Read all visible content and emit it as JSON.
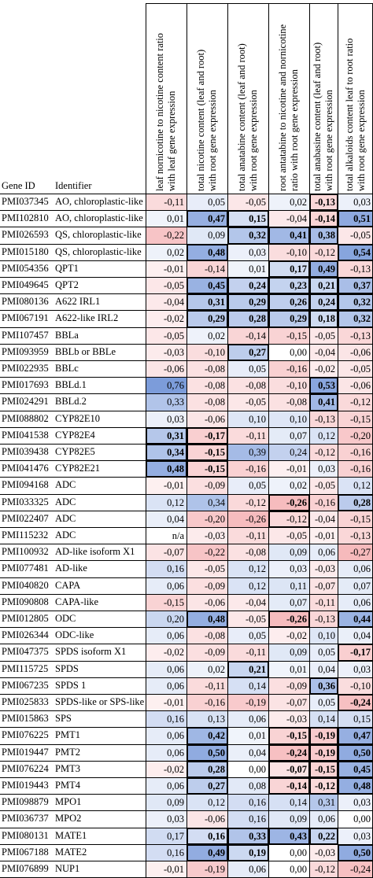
{
  "header": {
    "gene_id": "Gene ID",
    "identifier": "Identifier",
    "columns": [
      {
        "line1": "leaf nornicotine to nicotine content ratio",
        "line2": "with leaf gene expression"
      },
      {
        "line1": "total nicotine content (leaf and root)",
        "line2": "with root gene expression"
      },
      {
        "line1": "total anatabine content (leaf and root)",
        "line2": "with root gene expression"
      },
      {
        "line1": "root antatabine to nicotine and nornicotine",
        "line2": "ratio with root gene expression"
      },
      {
        "line1": "total anabasine content (leaf and root)",
        "line2": "with root gene expression"
      },
      {
        "line1": "total alkaloids content leaf to root ratio",
        "line2": "with root gene expression"
      }
    ]
  },
  "colors": {
    "pos": "#5b83d1",
    "neg": "#e8545a"
  },
  "rows": [
    {
      "id": "PMI037345",
      "name": "AO, chloroplastic-like",
      "v": [
        "-0,11",
        "0,05",
        "-0,05",
        "0,02",
        "-0,13",
        "0,03"
      ],
      "b": [
        0,
        0,
        0,
        0,
        1,
        0
      ],
      "x": [
        0,
        0,
        0,
        0,
        1,
        0
      ]
    },
    {
      "id": "PMI102810",
      "name": "AO, chloroplastic-like",
      "v": [
        "0,01",
        "0,47",
        "0,15",
        "-0,04",
        "-0,14",
        "0,51"
      ],
      "b": [
        0,
        1,
        1,
        0,
        1,
        1
      ],
      "x": [
        0,
        1,
        1,
        0,
        1,
        1
      ]
    },
    {
      "id": "PMI026593",
      "name": "QS, chloroplastic-like",
      "v": [
        "-0,22",
        "0,09",
        "0,32",
        "0,41",
        "0,38",
        "-0,05"
      ],
      "b": [
        0,
        0,
        1,
        1,
        1,
        0
      ],
      "x": [
        0,
        0,
        1,
        1,
        1,
        0
      ]
    },
    {
      "id": "PMI015180",
      "name": "QS, chloroplastic-like",
      "v": [
        "0,02",
        "0,48",
        "0,03",
        "-0,10",
        "-0,12",
        "0,54"
      ],
      "b": [
        0,
        1,
        0,
        0,
        0,
        1
      ],
      "x": [
        0,
        1,
        0,
        0,
        0,
        1
      ]
    },
    {
      "id": "PMI054356",
      "name": "QPT1",
      "v": [
        "-0,01",
        "-0,14",
        "0,01",
        "0,17",
        "0,49",
        "-0,13"
      ],
      "b": [
        0,
        0,
        0,
        1,
        1,
        0
      ],
      "x": [
        0,
        0,
        0,
        1,
        1,
        0
      ]
    },
    {
      "id": "PMI049645",
      "name": "QPT2",
      "v": [
        "-0,05",
        "0,45",
        "0,24",
        "0,23",
        "0,21",
        "0,37"
      ],
      "b": [
        0,
        1,
        1,
        1,
        1,
        1
      ],
      "x": [
        0,
        1,
        1,
        1,
        1,
        1
      ]
    },
    {
      "id": "PMI080136",
      "name": "A622 IRL1",
      "v": [
        "-0,04",
        "0,31",
        "0,29",
        "0,26",
        "0,24",
        "0,32"
      ],
      "b": [
        0,
        1,
        1,
        1,
        1,
        1
      ],
      "x": [
        0,
        1,
        1,
        1,
        1,
        1
      ]
    },
    {
      "id": "PMI067191",
      "name": "A622-like IRL2",
      "v": [
        "-0,02",
        "0,29",
        "0,28",
        "0,29",
        "0,18",
        "0,32"
      ],
      "b": [
        0,
        1,
        1,
        1,
        1,
        1
      ],
      "x": [
        0,
        1,
        1,
        1,
        1,
        1
      ]
    },
    {
      "id": "PMI107457",
      "name": "BBLa",
      "v": [
        "-0,05",
        "0,02",
        "-0,14",
        "-0,15",
        "-0,05",
        "-0,13"
      ],
      "b": [
        0,
        0,
        0,
        0,
        0,
        0
      ],
      "x": [
        0,
        0,
        0,
        0,
        0,
        0
      ]
    },
    {
      "id": "PMI093959",
      "name": "BBLb or BBLe",
      "v": [
        "-0,03",
        "-0,10",
        "0,27",
        "0,00",
        "-0,04",
        "-0,06"
      ],
      "b": [
        0,
        0,
        1,
        0,
        0,
        0
      ],
      "x": [
        0,
        0,
        1,
        0,
        0,
        0
      ]
    },
    {
      "id": "PMI022935",
      "name": "BBLc",
      "v": [
        "-0,06",
        "-0,08",
        "0,05",
        "-0,16",
        "-0,02",
        "-0,05"
      ],
      "b": [
        0,
        0,
        0,
        0,
        0,
        0
      ],
      "x": [
        0,
        0,
        0,
        0,
        0,
        0
      ]
    },
    {
      "id": "PMI017693",
      "name": "BBLd.1",
      "v": [
        "0,76",
        "-0,08",
        "-0,08",
        "-0,10",
        "0,53",
        "-0,06"
      ],
      "b": [
        0,
        0,
        0,
        0,
        1,
        0
      ],
      "x": [
        0,
        0,
        0,
        0,
        1,
        0
      ]
    },
    {
      "id": "PMI024291",
      "name": "BBLd.2",
      "v": [
        "0,33",
        "-0,08",
        "-0,05",
        "-0,08",
        "0,41",
        "-0,12"
      ],
      "b": [
        0,
        0,
        0,
        0,
        1,
        0
      ],
      "x": [
        0,
        0,
        0,
        0,
        1,
        0
      ]
    },
    {
      "id": "PMI088802",
      "name": "CYP82E10",
      "v": [
        "0,03",
        "-0,06",
        "0,10",
        "0,10",
        "-0,13",
        "-0,15"
      ],
      "b": [
        0,
        0,
        0,
        0,
        0,
        0
      ],
      "x": [
        0,
        0,
        0,
        0,
        0,
        0
      ]
    },
    {
      "id": "PMI041538",
      "name": "CYP82E4",
      "v": [
        "0,31",
        "-0,17",
        "-0,11",
        "0,07",
        "0,12",
        "-0,20"
      ],
      "b": [
        1,
        1,
        0,
        0,
        0,
        0
      ],
      "x": [
        1,
        1,
        0,
        0,
        0,
        0
      ]
    },
    {
      "id": "PMI039438",
      "name": "CYP82E5",
      "v": [
        "0,34",
        "-0,15",
        "0,39",
        "0,24",
        "-0,12",
        "-0,16"
      ],
      "b": [
        1,
        1,
        0,
        0,
        0,
        0
      ],
      "x": [
        1,
        1,
        0,
        0,
        0,
        0
      ]
    },
    {
      "id": "PMI041476",
      "name": "CYP82E21",
      "v": [
        "0,48",
        "-0,15",
        "-0,16",
        "-0,01",
        "0,03",
        "-0,16"
      ],
      "b": [
        1,
        1,
        0,
        0,
        0,
        0
      ],
      "x": [
        1,
        1,
        0,
        0,
        0,
        0
      ]
    },
    {
      "id": "PMI094168",
      "name": "ADC",
      "v": [
        "-0,01",
        "-0,09",
        "0,05",
        "0,02",
        "-0,05",
        "0,12"
      ],
      "b": [
        0,
        0,
        0,
        0,
        0,
        0
      ],
      "x": [
        0,
        0,
        0,
        0,
        0,
        0
      ]
    },
    {
      "id": "PMI033325",
      "name": "ADC",
      "v": [
        "0,12",
        "0,34",
        "-0,12",
        "-0,26",
        "-0,16",
        "0,28"
      ],
      "b": [
        0,
        0,
        0,
        1,
        0,
        1
      ],
      "x": [
        0,
        0,
        0,
        1,
        0,
        1
      ]
    },
    {
      "id": "PMI022407",
      "name": "ADC",
      "v": [
        "0,04",
        "-0,20",
        "-0,26",
        "-0,12",
        "-0,04",
        "-0,15"
      ],
      "b": [
        0,
        0,
        0,
        0,
        0,
        0
      ],
      "x": [
        0,
        0,
        0,
        1,
        0,
        0
      ]
    },
    {
      "id": "PMI115232",
      "name": "ADC",
      "v": [
        "n/a",
        "-0,03",
        "-0,11",
        "-0,05",
        "-0,01",
        "-0,13"
      ],
      "b": [
        0,
        0,
        0,
        0,
        0,
        0
      ],
      "x": [
        0,
        0,
        0,
        0,
        0,
        0
      ]
    },
    {
      "id": "PMI100932",
      "name": "AD-like isoform X1",
      "v": [
        "-0,07",
        "-0,22",
        "-0,08",
        "0,09",
        "0,06",
        "-0,27"
      ],
      "b": [
        0,
        0,
        0,
        0,
        0,
        0
      ],
      "x": [
        0,
        0,
        0,
        0,
        0,
        0
      ]
    },
    {
      "id": "PMI077481",
      "name": "AD-like",
      "v": [
        "0,16",
        "-0,05",
        "0,12",
        "0,03",
        "-0,03",
        "0,06"
      ],
      "b": [
        0,
        0,
        0,
        0,
        0,
        0
      ],
      "x": [
        0,
        0,
        0,
        0,
        0,
        0
      ]
    },
    {
      "id": "PMI040820",
      "name": "CAPA",
      "v": [
        "0,06",
        "-0,09",
        "0,12",
        "0,11",
        "-0,07",
        "0,07"
      ],
      "b": [
        0,
        0,
        0,
        0,
        0,
        0
      ],
      "x": [
        0,
        0,
        0,
        0,
        0,
        0
      ]
    },
    {
      "id": "PMI090808",
      "name": "CAPA-like",
      "v": [
        "-0,15",
        "-0,06",
        "-0,04",
        "0,07",
        "-0,11",
        "0,06"
      ],
      "b": [
        0,
        0,
        0,
        0,
        0,
        0
      ],
      "x": [
        0,
        0,
        0,
        0,
        0,
        0
      ]
    },
    {
      "id": "PMI012805",
      "name": "ODC",
      "v": [
        "0,20",
        "0,48",
        "-0,05",
        "-0,26",
        "-0,13",
        "0,44"
      ],
      "b": [
        0,
        1,
        0,
        1,
        0,
        1
      ],
      "x": [
        0,
        1,
        0,
        1,
        0,
        1
      ]
    },
    {
      "id": "PMI026344",
      "name": "ODC-like",
      "v": [
        "0,06",
        "-0,08",
        "0,05",
        "-0,02",
        "0,10",
        "0,04"
      ],
      "b": [
        0,
        0,
        0,
        0,
        0,
        0
      ],
      "x": [
        0,
        0,
        0,
        0,
        0,
        0
      ]
    },
    {
      "id": "PMI047375",
      "name": "SPDS isoform X1",
      "v": [
        "-0,02",
        "-0,09",
        "-0,11",
        "0,09",
        "0,05",
        "-0,17"
      ],
      "b": [
        0,
        0,
        0,
        0,
        0,
        1
      ],
      "x": [
        0,
        0,
        0,
        0,
        0,
        1
      ]
    },
    {
      "id": "PMI115725",
      "name": "SPDS",
      "v": [
        "0,06",
        "0,02",
        "0,21",
        "0,01",
        "0,04",
        "0,03"
      ],
      "b": [
        0,
        0,
        1,
        0,
        0,
        0
      ],
      "x": [
        0,
        0,
        1,
        0,
        0,
        0
      ]
    },
    {
      "id": "PMI067235",
      "name": "SPDS 1",
      "v": [
        "0,06",
        "-0,11",
        "0,14",
        "-0,09",
        "0,36",
        "-0,10"
      ],
      "b": [
        0,
        0,
        0,
        0,
        1,
        0
      ],
      "x": [
        0,
        0,
        0,
        0,
        1,
        0
      ]
    },
    {
      "id": "PMI025833",
      "name": "SPDS-like or SPS-like",
      "v": [
        "-0,01",
        "-0,16",
        "-0,19",
        "-0,07",
        "0,05",
        "-0,24"
      ],
      "b": [
        0,
        0,
        0,
        0,
        0,
        1
      ],
      "x": [
        0,
        0,
        0,
        0,
        0,
        1
      ]
    },
    {
      "id": "PMI015863",
      "name": "SPS",
      "v": [
        "0,16",
        "0,13",
        "0,06",
        "-0,03",
        "0,14",
        "0,15"
      ],
      "b": [
        0,
        0,
        0,
        0,
        0,
        0
      ],
      "x": [
        0,
        0,
        0,
        0,
        0,
        0
      ]
    },
    {
      "id": "PMI076225",
      "name": "PMT1",
      "v": [
        "0,06",
        "0,42",
        "0,01",
        "-0,15",
        "-0,19",
        "0,47"
      ],
      "b": [
        0,
        1,
        0,
        1,
        1,
        1
      ],
      "x": [
        0,
        1,
        0,
        1,
        1,
        1
      ]
    },
    {
      "id": "PMI019447",
      "name": "PMT2",
      "v": [
        "0,06",
        "0,50",
        "0,04",
        "-0,24",
        "-0,19",
        "0,50"
      ],
      "b": [
        0,
        1,
        0,
        1,
        1,
        1
      ],
      "x": [
        0,
        1,
        0,
        1,
        1,
        1
      ]
    },
    {
      "id": "PMI076224",
      "name": "PMT3",
      "v": [
        "-0,02",
        "0,28",
        "0,00",
        "-0,07",
        "-0,15",
        "0,45"
      ],
      "b": [
        0,
        1,
        0,
        1,
        1,
        1
      ],
      "x": [
        0,
        1,
        0,
        1,
        1,
        1
      ]
    },
    {
      "id": "PMI019443",
      "name": "PMT4",
      "v": [
        "0,06",
        "0,27",
        "0,08",
        "-0,14",
        "-0,12",
        "0,48"
      ],
      "b": [
        0,
        1,
        0,
        1,
        1,
        1
      ],
      "x": [
        0,
        1,
        0,
        1,
        1,
        1
      ]
    },
    {
      "id": "PMI098879",
      "name": "MPO1",
      "v": [
        "0,09",
        "0,12",
        "0,16",
        "0,14",
        "0,31",
        "0,03"
      ],
      "b": [
        0,
        0,
        0,
        0,
        0,
        0
      ],
      "x": [
        0,
        0,
        0,
        0,
        0,
        0
      ]
    },
    {
      "id": "PMI036737",
      "name": "MPO2",
      "v": [
        "0,03",
        "-0,06",
        "0,16",
        "0,09",
        "0,06",
        "0,00"
      ],
      "b": [
        0,
        0,
        0,
        0,
        0,
        0
      ],
      "x": [
        0,
        0,
        0,
        0,
        0,
        0
      ]
    },
    {
      "id": "PMI080131",
      "name": "MATE1",
      "v": [
        "0,17",
        "0,16",
        "0,33",
        "0,43",
        "0,22",
        "0,03"
      ],
      "b": [
        0,
        1,
        1,
        1,
        1,
        0
      ],
      "x": [
        0,
        1,
        1,
        1,
        1,
        0
      ]
    },
    {
      "id": "PMI067188",
      "name": "MATE2",
      "v": [
        "0,16",
        "0,49",
        "0,19",
        "0,00",
        "-0,03",
        "0,50"
      ],
      "b": [
        0,
        1,
        1,
        0,
        0,
        1
      ],
      "x": [
        0,
        1,
        1,
        0,
        0,
        1
      ]
    },
    {
      "id": "PMI076899",
      "name": "NUP1",
      "v": [
        "-0,01",
        "-0,19",
        "0,06",
        "0,00",
        "-0,12",
        "-0,24"
      ],
      "b": [
        0,
        0,
        0,
        0,
        0,
        0
      ],
      "x": [
        0,
        0,
        0,
        0,
        0,
        0
      ]
    }
  ]
}
